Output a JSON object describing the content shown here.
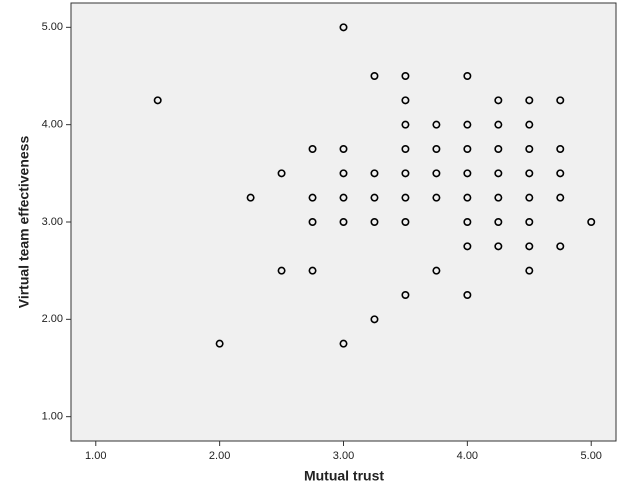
{
  "chart_data": {
    "type": "scatter",
    "x_label": "Mutual trust",
    "y_label": "Virtual team effectiveness",
    "x": [
      1.5,
      2.0,
      2.25,
      2.5,
      2.5,
      2.75,
      2.75,
      2.75,
      2.75,
      3.0,
      3.0,
      3.0,
      3.0,
      3.0,
      3.0,
      3.25,
      3.25,
      3.25,
      3.25,
      3.25,
      3.5,
      3.5,
      3.5,
      3.5,
      3.5,
      3.5,
      3.5,
      3.5,
      3.75,
      3.75,
      3.75,
      3.75,
      3.75,
      4.0,
      4.0,
      4.0,
      4.0,
      4.0,
      4.0,
      4.0,
      4.0,
      4.25,
      4.25,
      4.25,
      4.25,
      4.25,
      4.25,
      4.25,
      4.5,
      4.5,
      4.5,
      4.5,
      4.5,
      4.5,
      4.5,
      4.5,
      4.75,
      4.75,
      4.75,
      4.75,
      4.75,
      5.0
    ],
    "y": [
      4.25,
      1.75,
      3.25,
      3.5,
      2.5,
      3.75,
      3.25,
      3.0,
      2.5,
      5.0,
      3.75,
      3.5,
      3.25,
      3.0,
      1.75,
      4.5,
      3.5,
      3.25,
      3.0,
      2.0,
      4.5,
      4.25,
      4.0,
      3.75,
      3.5,
      3.25,
      3.0,
      2.25,
      4.0,
      3.75,
      3.5,
      3.25,
      2.5,
      4.5,
      4.0,
      3.75,
      3.5,
      3.25,
      3.0,
      2.75,
      2.25,
      4.25,
      4.0,
      3.75,
      3.5,
      3.25,
      3.0,
      2.75,
      4.25,
      4.0,
      3.75,
      3.5,
      3.25,
      3.0,
      2.75,
      2.5,
      4.25,
      3.75,
      3.5,
      3.25,
      2.75,
      3.0
    ],
    "color": "#000000",
    "xlim": [
      0.8,
      5.2
    ],
    "ylim": [
      0.75,
      5.25
    ],
    "xticks": [
      {
        "value": 1,
        "label": "1.00"
      },
      {
        "value": 2,
        "label": "2.00"
      },
      {
        "value": 3,
        "label": "3.00"
      },
      {
        "value": 4,
        "label": "4.00"
      },
      {
        "value": 5,
        "label": "5.00"
      }
    ],
    "yticks": [
      {
        "value": 1,
        "label": "1.00"
      },
      {
        "value": 2,
        "label": "2.00"
      },
      {
        "value": 3,
        "label": "3.00"
      },
      {
        "value": 4,
        "label": "4.00"
      },
      {
        "value": 5,
        "label": "5.00"
      }
    ],
    "grid": false
  }
}
